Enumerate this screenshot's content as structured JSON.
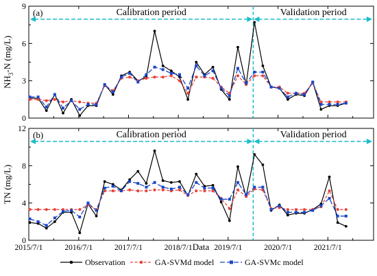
{
  "chart_data": [
    {
      "type": "line",
      "panel_label": "(a)",
      "ylabel_main": "NH",
      "ylabel_sub": "3",
      "ylabel_rest": "-N (mg/L)",
      "ylim": [
        0,
        9
      ],
      "yticks": [
        "0",
        "3",
        "6",
        "9"
      ],
      "grid": false,
      "annotations": [
        "Calibration period",
        "Validation period"
      ],
      "series": [
        {
          "name": "Observation",
          "color": "#000000",
          "values": [
            1.6,
            1.6,
            0.6,
            1.9,
            0.4,
            1.5,
            0.2,
            1.0,
            1.0,
            2.7,
            1.9,
            3.4,
            3.7,
            3.0,
            3.3,
            7.0,
            4.2,
            3.8,
            3.3,
            1.5,
            4.5,
            3.5,
            4.1,
            2.3,
            1.5,
            5.7,
            2.7,
            7.7,
            4.2,
            2.5,
            2.4,
            1.5,
            1.9,
            1.8,
            2.9,
            0.7,
            1.0,
            1.0,
            1.2
          ]
        },
        {
          "name": "GA-SVMd model",
          "color": "#e8433a",
          "values": [
            1.5,
            1.5,
            1.4,
            1.5,
            1.3,
            1.4,
            1.3,
            1.2,
            1.2,
            2.6,
            2.2,
            3.2,
            3.3,
            3.0,
            3.2,
            3.3,
            3.3,
            3.4,
            3.0,
            2.0,
            3.3,
            3.3,
            3.2,
            2.5,
            2.0,
            3.4,
            2.7,
            3.4,
            3.4,
            2.5,
            2.5,
            2.0,
            2.0,
            2.0,
            2.8,
            1.3,
            1.3,
            1.3,
            1.3
          ]
        },
        {
          "name": "GA-SVMc model",
          "color": "#1a46c8",
          "values": [
            1.7,
            1.7,
            0.9,
            1.9,
            0.8,
            1.4,
            0.7,
            1.1,
            1.1,
            2.7,
            2.1,
            3.3,
            3.6,
            2.9,
            3.5,
            4.1,
            3.9,
            3.6,
            3.5,
            2.4,
            4.2,
            3.4,
            3.8,
            2.4,
            1.8,
            4.0,
            2.8,
            3.7,
            3.7,
            2.5,
            2.4,
            1.7,
            2.0,
            1.9,
            2.9,
            1.1,
            1.1,
            1.1,
            1.2
          ]
        }
      ]
    },
    {
      "type": "line",
      "panel_label": "(b)",
      "ylabel": "TN (mg/L)",
      "xlabel": "Data",
      "ylim": [
        0,
        12
      ],
      "yticks": [
        "0",
        "4",
        "8",
        "12"
      ],
      "grid": false,
      "annotations": [
        "Calibration period",
        "Validation period"
      ],
      "series": [
        {
          "name": "Observation",
          "color": "#000000",
          "values": [
            1.9,
            1.8,
            1.3,
            2.0,
            3.0,
            3.0,
            0.8,
            3.9,
            2.6,
            6.3,
            6.0,
            5.4,
            6.5,
            7.4,
            6.1,
            9.6,
            6.4,
            6.2,
            6.3,
            4.8,
            7.1,
            5.8,
            5.9,
            4.1,
            2.1,
            7.9,
            4.7,
            9.2,
            8.1,
            3.2,
            3.8,
            2.7,
            2.9,
            2.9,
            3.3,
            3.9,
            6.8,
            1.9,
            1.5
          ]
        },
        {
          "name": "GA-SVMd model",
          "color": "#e8433a",
          "values": [
            3.3,
            3.3,
            3.3,
            3.3,
            3.3,
            3.3,
            3.3,
            3.8,
            3.3,
            5.3,
            5.3,
            5.3,
            5.4,
            5.3,
            5.3,
            5.4,
            5.4,
            5.3,
            5.4,
            4.8,
            5.3,
            5.3,
            5.3,
            4.5,
            3.4,
            5.4,
            4.7,
            5.5,
            5.4,
            3.4,
            3.5,
            3.3,
            3.3,
            3.3,
            3.3,
            3.6,
            5.3,
            3.3,
            3.3
          ]
        },
        {
          "name": "GA-SVMc model",
          "color": "#1a46c8",
          "values": [
            2.3,
            2.0,
            1.6,
            2.4,
            3.1,
            3.2,
            2.5,
            4.0,
            3.2,
            5.6,
            5.8,
            5.3,
            6.3,
            6.1,
            5.7,
            6.2,
            5.7,
            5.5,
            5.7,
            4.9,
            6.2,
            5.6,
            5.6,
            4.4,
            4.4,
            6.2,
            4.9,
            5.7,
            5.7,
            3.3,
            3.7,
            3.0,
            3.0,
            3.0,
            3.2,
            3.7,
            4.5,
            2.6,
            2.6
          ]
        }
      ]
    }
  ],
  "x_axis": {
    "ticks": [
      "2015/7/1",
      "2016/7/1",
      "2017/7/1",
      "2018/7/1",
      "2019/7/1",
      "2020/7/1",
      "2021/7/1"
    ],
    "start": "2015/7/1",
    "split_date": "2020/1/1"
  },
  "legend": {
    "placement": "bottom",
    "items": [
      "Observation",
      "GA-SVMd model",
      "GA-SVMc model"
    ]
  }
}
